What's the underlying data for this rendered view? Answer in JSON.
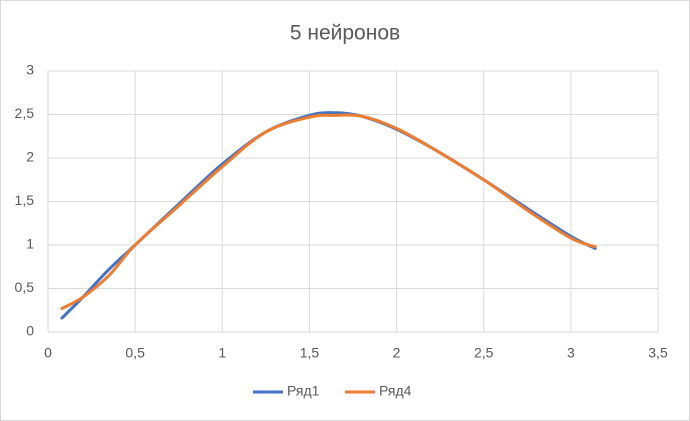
{
  "chart_data": {
    "type": "scatter",
    "title": "5 нейронов",
    "x": [
      0.08,
      0.2,
      0.35,
      0.5,
      0.75,
      1.0,
      1.25,
      1.5,
      1.65,
      1.8,
      2.0,
      2.25,
      2.5,
      2.75,
      3.0,
      3.14
    ],
    "series": [
      {
        "name": "Ряд1",
        "color": "#4472c4",
        "values": [
          0.16,
          0.4,
          0.72,
          1.0,
          1.47,
          1.93,
          2.3,
          2.49,
          2.52,
          2.48,
          2.33,
          2.06,
          1.75,
          1.42,
          1.1,
          0.96
        ]
      },
      {
        "name": "Ряд4",
        "color": "#ed7d31",
        "values": [
          0.27,
          0.4,
          0.65,
          1.0,
          1.45,
          1.9,
          2.3,
          2.47,
          2.49,
          2.48,
          2.34,
          2.06,
          1.75,
          1.4,
          1.08,
          0.98
        ]
      }
    ],
    "xlim": [
      0,
      3.5
    ],
    "xticks": [
      0,
      {
        "value": 0.5,
        "label": "0,5"
      },
      1,
      {
        "value": 1.5,
        "label": "1,5"
      },
      2,
      {
        "value": 2.5,
        "label": "2,5"
      },
      3,
      {
        "value": 3.5,
        "label": "3,5"
      }
    ],
    "ylim": [
      0,
      3
    ],
    "yticks": [
      0,
      {
        "value": 0.5,
        "label": "0,5"
      },
      1,
      {
        "value": 1.5,
        "label": "1,5"
      },
      2,
      {
        "value": 2.5,
        "label": "2,5"
      },
      3
    ],
    "grid": true,
    "legend": "bottom",
    "smooth": true
  }
}
